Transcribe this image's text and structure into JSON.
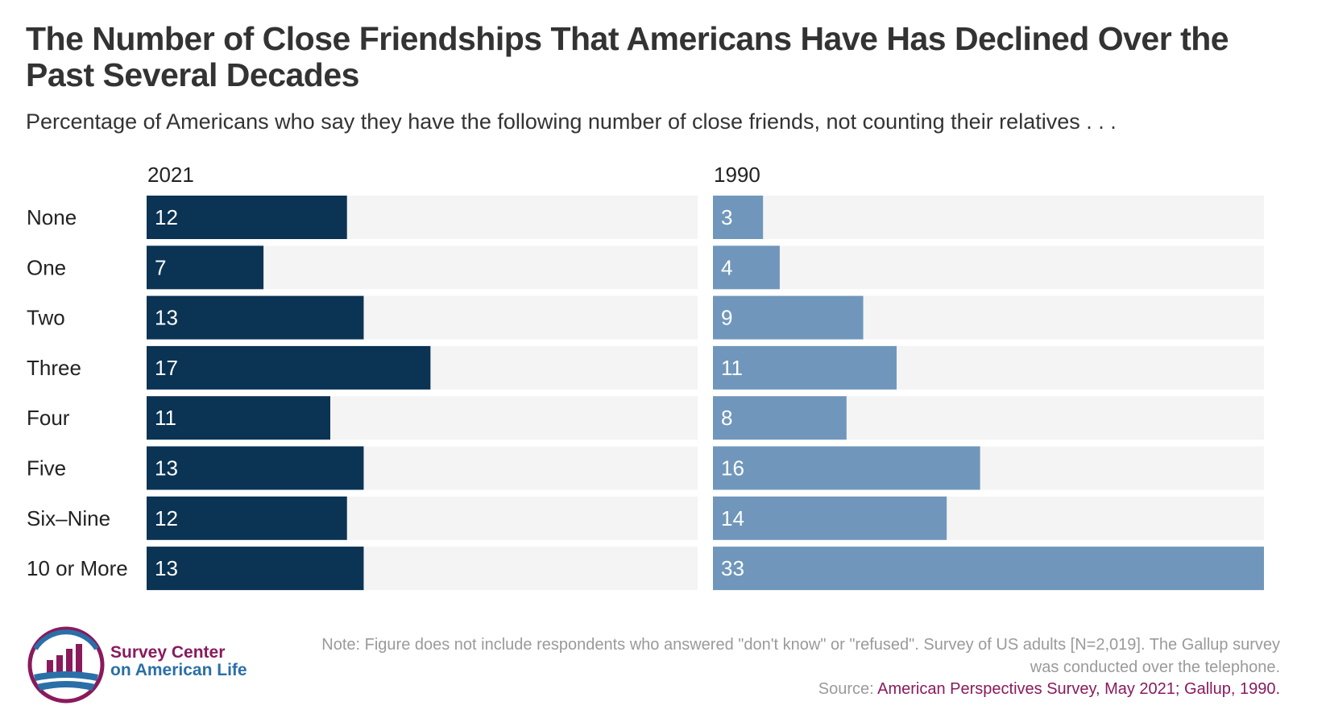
{
  "title": "The Number of Close Friendships That Americans Have Has Declined Over the Past Several Decades",
  "subtitle": "Percentage of Americans who say they have the following number of close friends, not counting their relatives . . .",
  "note": "Note: Figure does not include respondents who answered \"don't know\" or \"refused\". Survey of US adults [N=2,019]. The Gallup survey was conducted over the telephone.",
  "source": {
    "prefix": "Source:",
    "text": "American Perspectives Survey, May 2021; Gallup, 1990."
  },
  "logo": {
    "line1": "Survey Center",
    "line2": "on American Life",
    "icon": "bar-chart-globe-icon"
  },
  "colors": {
    "series_2021": "#0b3354",
    "series_1990": "#7097bb",
    "track": "#f4f4f4",
    "brand": "#8a1a5c"
  },
  "chart_data": {
    "type": "bar",
    "orientation": "horizontal",
    "categories": [
      "None",
      "One",
      "Two",
      "Three",
      "Four",
      "Five",
      "Six–Nine",
      "10 or More"
    ],
    "series": [
      {
        "name": "2021",
        "values": [
          12,
          7,
          13,
          17,
          11,
          13,
          12,
          13
        ]
      },
      {
        "name": "1990",
        "values": [
          3,
          4,
          9,
          11,
          8,
          16,
          14,
          33
        ]
      }
    ],
    "xlim": [
      0,
      33
    ],
    "data_labels": true,
    "grid": false
  }
}
